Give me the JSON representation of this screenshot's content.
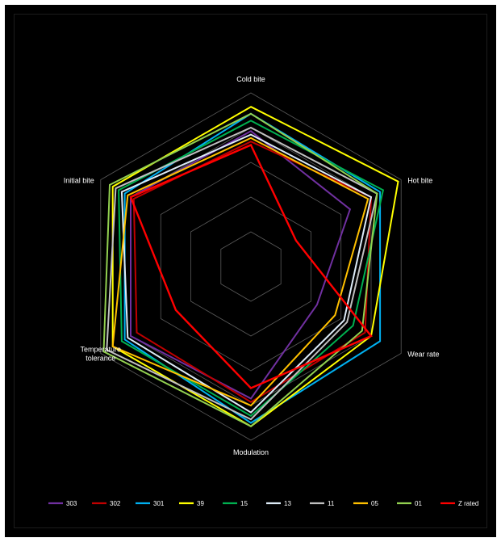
{
  "chart_data": {
    "type": "radar",
    "title": "",
    "axes": [
      "Cold bite",
      "Hot bite",
      "Wear rate",
      "Modulation",
      "Temperature tolerance",
      "Initial bite"
    ],
    "axis_label_lines": [
      [
        "Cold bite"
      ],
      [
        "Hot bite"
      ],
      [
        "Wear rate"
      ],
      [
        "Modulation"
      ],
      [
        "Temperature",
        "tolerance"
      ],
      [
        "Initial bite"
      ]
    ],
    "scale": {
      "min": 0,
      "max": 5,
      "grid_levels": 5
    },
    "grid": true,
    "legend_position": "bottom",
    "series": [
      {
        "name": "303",
        "color": "#7030a0",
        "values": [
          3.9,
          3.3,
          2.2,
          3.8,
          4.0,
          4.0
        ]
      },
      {
        "name": "302",
        "color": "#c00000",
        "values": [
          3.6,
          4.0,
          3.8,
          3.9,
          3.8,
          3.9
        ]
      },
      {
        "name": "301",
        "color": "#00b0f0",
        "values": [
          4.4,
          4.3,
          4.3,
          4.5,
          4.2,
          4.2
        ]
      },
      {
        "name": "39",
        "color": "#ffff00",
        "values": [
          4.6,
          4.9,
          4.0,
          4.6,
          4.6,
          4.6
        ]
      },
      {
        "name": "15",
        "color": "#00b050",
        "values": [
          4.2,
          4.4,
          3.4,
          4.3,
          4.3,
          4.4
        ]
      },
      {
        "name": "13",
        "color": "#ddebf7",
        "values": [
          3.8,
          4.0,
          3.1,
          4.2,
          4.1,
          4.3
        ]
      },
      {
        "name": "11",
        "color": "#c0c0c0",
        "values": [
          4.0,
          4.2,
          3.2,
          4.4,
          4.8,
          4.5
        ]
      },
      {
        "name": "05",
        "color": "#ffc000",
        "values": [
          3.7,
          3.9,
          2.8,
          4.0,
          4.6,
          4.1
        ]
      },
      {
        "name": "01",
        "color": "#92d050",
        "values": [
          4.4,
          4.2,
          3.7,
          4.6,
          4.9,
          4.7
        ]
      },
      {
        "name": "Z rated",
        "color": "#ff0000",
        "values": [
          3.5,
          1.5,
          4.0,
          3.5,
          2.5,
          4.0
        ]
      }
    ]
  }
}
